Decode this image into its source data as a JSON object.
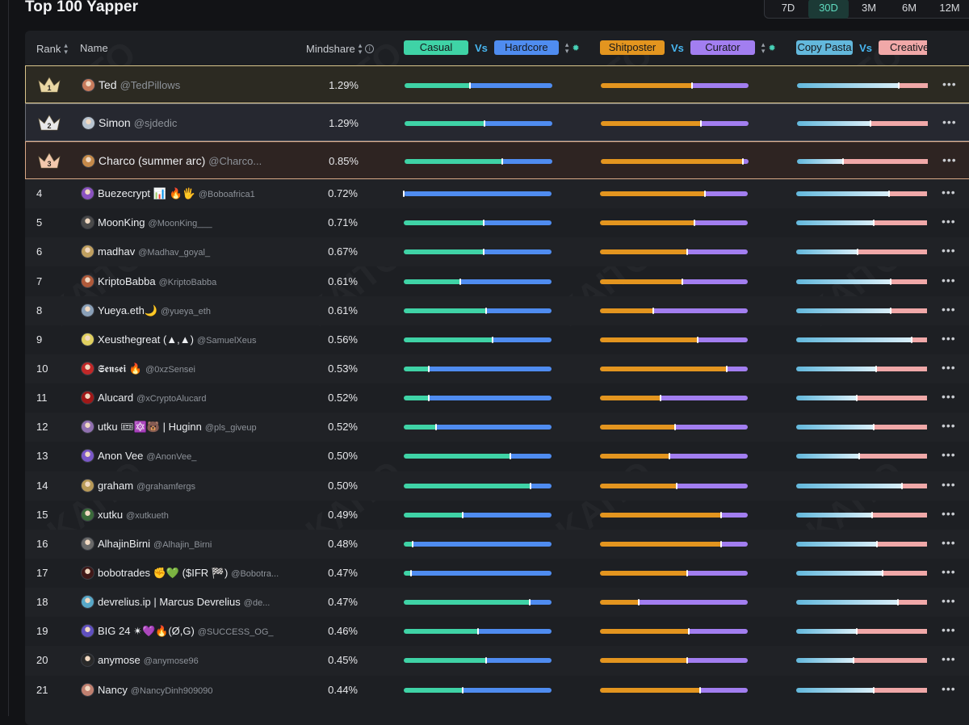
{
  "title": "Top 100 Yapper",
  "timeframes": [
    {
      "label": "7D",
      "active": false
    },
    {
      "label": "30D",
      "active": true
    },
    {
      "label": "3M",
      "active": false
    },
    {
      "label": "6M",
      "active": false
    },
    {
      "label": "12M",
      "active": false
    }
  ],
  "watermark": "KAITO",
  "header": {
    "rank": "Rank",
    "name": "Name",
    "mindshare": "Mindshare",
    "casual": "Casual",
    "hardcore": "Hardcore",
    "shitposter": "Shitposter",
    "curator": "Curator",
    "copy_pasta": "Copy Pasta",
    "creative": "Creative",
    "vs": "Vs"
  },
  "colors": {
    "casual": "#3fd3a6",
    "hardcore": "#4f8cf0",
    "shitposter": "#e3951f",
    "curator": "#a27ef0",
    "copy_pasta": "#63b8dc",
    "creative": "#f0a8a8",
    "gold": "#d9c48b"
  },
  "rows": [
    {
      "rank": "1",
      "name": "Ted",
      "handle": "@TedPillows",
      "mindshare": "1.29%",
      "casual": 0.44,
      "shitposter": 0.62,
      "copypasta": 0.78,
      "avatar": "#c77b5c"
    },
    {
      "rank": "2",
      "name": "Simon",
      "handle": "@sjdedic",
      "mindshare": "1.29%",
      "casual": 0.54,
      "shitposter": 0.68,
      "copypasta": 0.56,
      "avatar": "#b8c4d0"
    },
    {
      "rank": "3",
      "name": "Charco (summer arc)",
      "handle": "@Charco...",
      "mindshare": "0.85%",
      "casual": 0.66,
      "shitposter": 0.96,
      "copypasta": 0.35,
      "avatar": "#c58a4a"
    },
    {
      "rank": "4",
      "name": "Buezecrypt 📊 🔥🖐",
      "handle": "@Boboafrica1",
      "mindshare": "0.72%",
      "casual": 0.0,
      "shitposter": 0.71,
      "copypasta": 0.71,
      "avatar": "#8a52c0"
    },
    {
      "rank": "5",
      "name": "MoonKing",
      "handle": "@MoonKing___",
      "mindshare": "0.71%",
      "casual": 0.54,
      "shitposter": 0.64,
      "copypasta": 0.59,
      "avatar": "#4a4a4a"
    },
    {
      "rank": "6",
      "name": "madhav",
      "handle": "@Madhav_goyal_",
      "mindshare": "0.67%",
      "casual": 0.54,
      "shitposter": 0.59,
      "copypasta": 0.47,
      "avatar": "#c0a060"
    },
    {
      "rank": "7",
      "name": "KriptoBabba",
      "handle": "@KriptoBabba",
      "mindshare": "0.61%",
      "casual": 0.38,
      "shitposter": 0.56,
      "copypasta": 0.72,
      "avatar": "#b05a3a"
    },
    {
      "rank": "8",
      "name": "Yueya.eth🌙",
      "handle": "@yueya_eth",
      "mindshare": "0.61%",
      "casual": 0.56,
      "shitposter": 0.36,
      "copypasta": 0.72,
      "avatar": "#8aa0b8"
    },
    {
      "rank": "9",
      "name": "Xeusthegreat (▲,▲)",
      "handle": "@SamuelXeus",
      "mindshare": "0.56%",
      "casual": 0.6,
      "shitposter": 0.66,
      "copypasta": 0.88,
      "avatar": "#e0d060"
    },
    {
      "rank": "10",
      "name": "𝕾𝖊𝖓𝖘𝖊𝖎 🔥",
      "handle": "@0xzSensei",
      "mindshare": "0.53%",
      "casual": 0.17,
      "shitposter": 0.86,
      "copypasta": 0.61,
      "avatar": "#c02828"
    },
    {
      "rank": "11",
      "name": "Alucard",
      "handle": "@xCryptoAlucard",
      "mindshare": "0.52%",
      "casual": 0.17,
      "shitposter": 0.41,
      "copypasta": 0.46,
      "avatar": "#a01818"
    },
    {
      "rank": "12",
      "name": "utku 🎟🔯🐻 | Huginn",
      "handle": "@pls_giveup",
      "mindshare": "0.52%",
      "casual": 0.22,
      "shitposter": 0.51,
      "copypasta": 0.59,
      "avatar": "#9070b0"
    },
    {
      "rank": "13",
      "name": "Anon Vee",
      "handle": "@AnonVee_",
      "mindshare": "0.50%",
      "casual": 0.72,
      "shitposter": 0.47,
      "copypasta": 0.48,
      "avatar": "#7a58c8"
    },
    {
      "rank": "14",
      "name": "graham",
      "handle": "@grahamfergs",
      "mindshare": "0.50%",
      "casual": 0.86,
      "shitposter": 0.52,
      "copypasta": 0.81,
      "avatar": "#b89a58"
    },
    {
      "rank": "15",
      "name": "xutku",
      "handle": "@xutkueth",
      "mindshare": "0.49%",
      "casual": 0.4,
      "shitposter": 0.82,
      "copypasta": 0.58,
      "avatar": "#3a6a3a"
    },
    {
      "rank": "16",
      "name": "AlhajinBirni",
      "handle": "@Alhajin_Birni",
      "mindshare": "0.48%",
      "casual": 0.06,
      "shitposter": 0.82,
      "copypasta": 0.62,
      "avatar": "#6a6a6a"
    },
    {
      "rank": "17",
      "name": "bobotrades ✊💚 ($IFR 🏁)",
      "handle": "@Bobotra...",
      "mindshare": "0.47%",
      "casual": 0.05,
      "shitposter": 0.59,
      "copypasta": 0.66,
      "avatar": "#401818"
    },
    {
      "rank": "18",
      "name": "devrelius.ip | Marcus Devrelius",
      "handle": "@de...",
      "mindshare": "0.47%",
      "casual": 0.85,
      "shitposter": 0.26,
      "copypasta": 0.78,
      "avatar": "#58a8c8"
    },
    {
      "rank": "19",
      "name": "BIG 24 ✴💜🔥(Ø,G)",
      "handle": "@SUCCESS_OG_",
      "mindshare": "0.46%",
      "casual": 0.5,
      "shitposter": 0.6,
      "copypasta": 0.46,
      "avatar": "#6050c0"
    },
    {
      "rank": "20",
      "name": "anymose",
      "handle": "@anymose96",
      "mindshare": "0.45%",
      "casual": 0.56,
      "shitposter": 0.59,
      "copypasta": 0.44,
      "avatar": "#2a2a2a"
    },
    {
      "rank": "21",
      "name": "Nancy",
      "handle": "@NancyDinh909090",
      "mindshare": "0.44%",
      "casual": 0.4,
      "shitposter": 0.68,
      "copypasta": 0.59,
      "avatar": "#c08070"
    }
  ]
}
